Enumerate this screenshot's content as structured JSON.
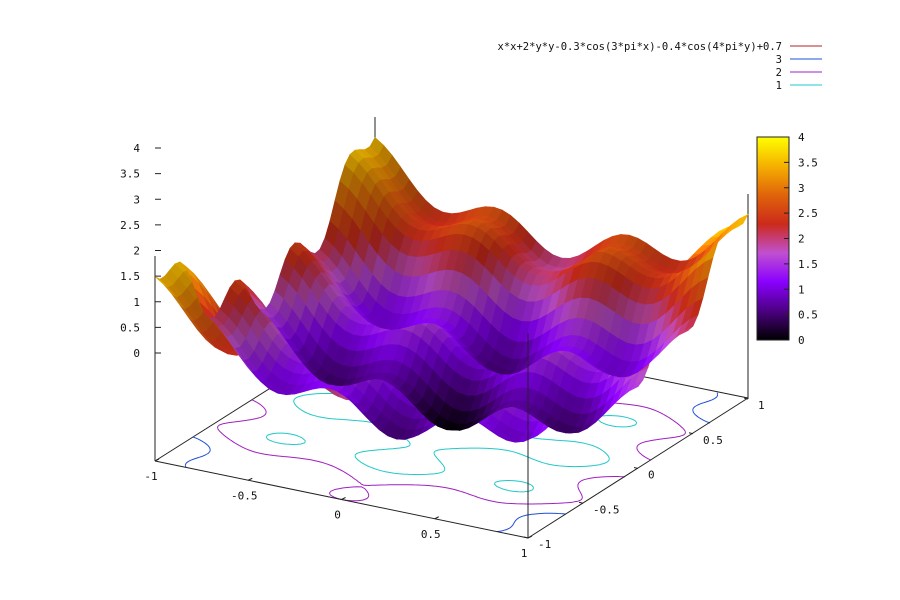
{
  "chart_data": {
    "type": "surface",
    "title": "",
    "function": "x*x+2*y*y-0.3*cos(3*pi*x)-0.4*cos(4*pi*y)+0.7",
    "xlim": [
      -1,
      1
    ],
    "ylim": [
      -1,
      1
    ],
    "zlim": [
      0,
      4
    ],
    "x_ticks": [
      "-1",
      "-0.5",
      "0",
      "0.5",
      "1"
    ],
    "y_ticks": [
      "-1",
      "-0.5",
      "0",
      "0.5",
      "1"
    ],
    "z_ticks": [
      "0",
      "0.5",
      "1",
      "1.5",
      "2",
      "2.5",
      "3",
      "3.5",
      "4"
    ],
    "colorbar_ticks": [
      "0",
      "0.5",
      "1",
      "1.5",
      "2",
      "2.5",
      "3",
      "3.5",
      "4"
    ],
    "legend_position": "top-right",
    "series": [
      {
        "name": "x*x+2*y*y-0.3*cos(3*pi*x)-0.4*cos(4*pi*y)+0.7",
        "kind": "surface",
        "color": "#b22222"
      },
      {
        "name": "3",
        "kind": "contour",
        "level": 3,
        "color": "#1f4fd8"
      },
      {
        "name": "2",
        "kind": "contour",
        "level": 2,
        "color": "#a020c0"
      },
      {
        "name": "1",
        "kind": "contour",
        "level": 1,
        "color": "#20c8c8"
      }
    ],
    "palette": [
      "#000000",
      "#4b0082",
      "#8a00ff",
      "#c050d0",
      "#cc2a1a",
      "#e0640a",
      "#f5b000",
      "#ffff00"
    ]
  }
}
